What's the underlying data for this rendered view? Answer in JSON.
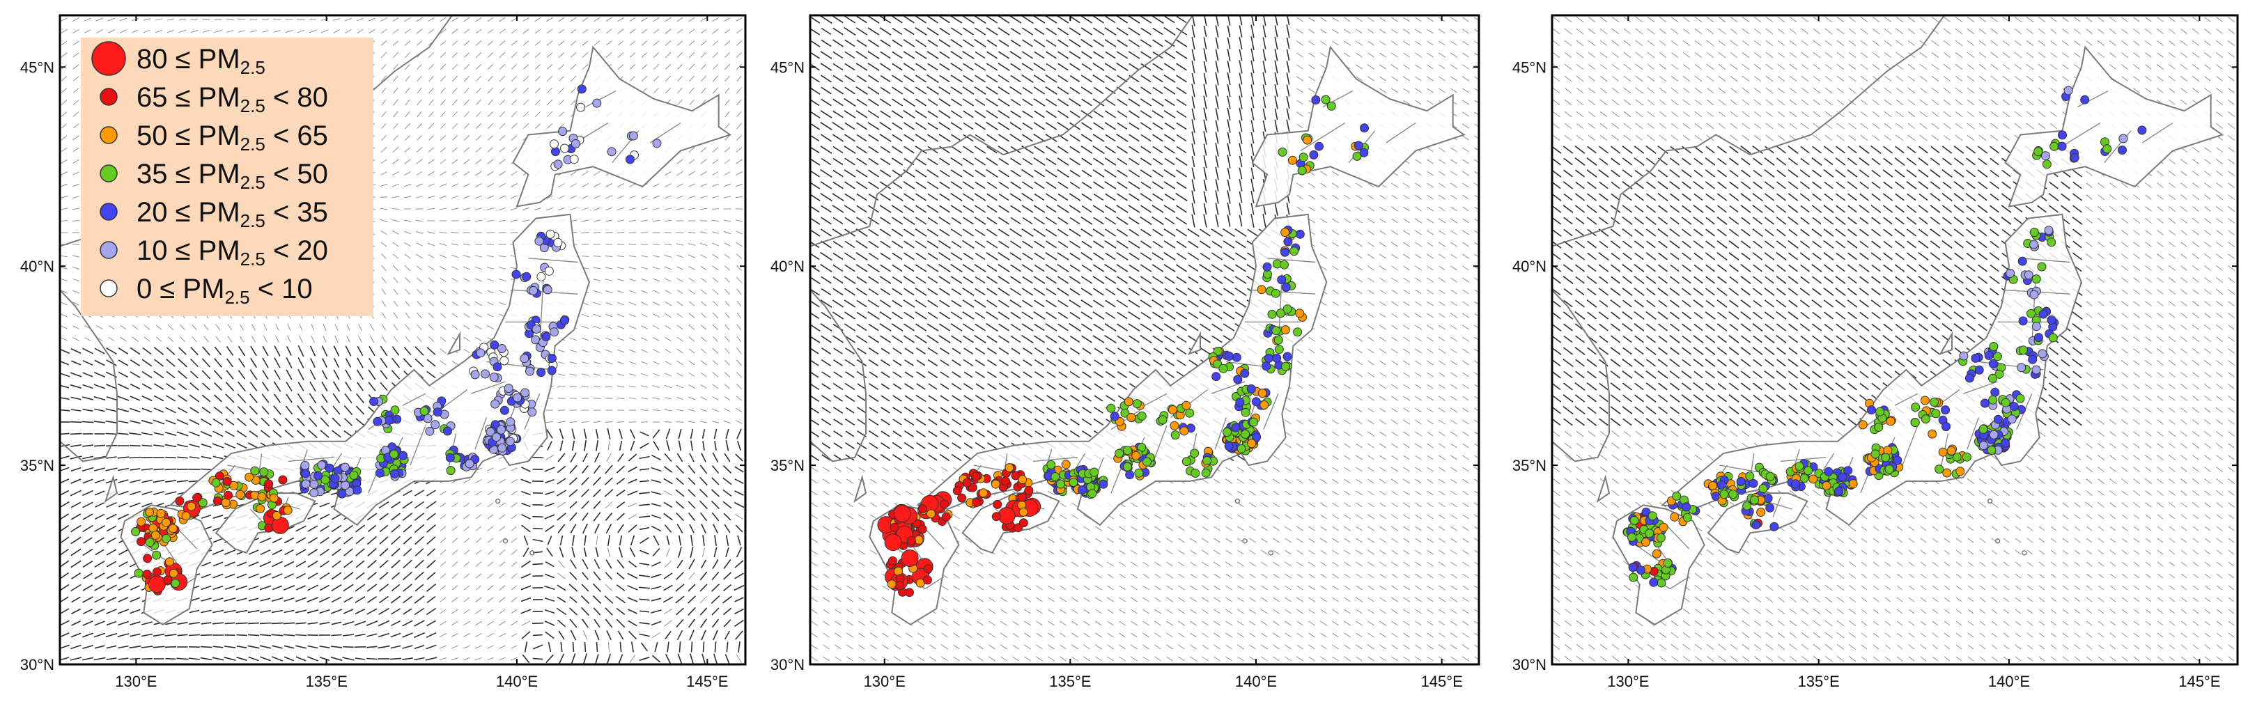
{
  "colors": {
    "legend_bg": "#fcd9bb",
    "coast": "#7a7a7a",
    "prefecture_border": "#8a8a8a",
    "wind_vector": "#222222",
    "frame": "#000000"
  },
  "legend": {
    "items": [
      {
        "label": "80 ≤ PM2.5",
        "parts": [
          "80 ≤ PM",
          "2.5",
          ""
        ],
        "color": "#ff1a1a",
        "size": "large"
      },
      {
        "label": "65 ≤ PM2.5 < 80",
        "parts": [
          "65 ≤ PM",
          "2.5",
          " < 80"
        ],
        "color": "#e81010",
        "size": "small"
      },
      {
        "label": "50 ≤ PM2.5 < 65",
        "parts": [
          "50 ≤ PM",
          "2.5",
          " < 65"
        ],
        "color": "#ff9900",
        "size": "small"
      },
      {
        "label": "35 ≤ PM2.5 < 50",
        "parts": [
          "35 ≤ PM",
          "2.5",
          " < 50"
        ],
        "color": "#66cc22",
        "size": "small"
      },
      {
        "label": "20 ≤ PM2.5 < 35",
        "parts": [
          "20 ≤ PM",
          "2.5",
          " < 35"
        ],
        "color": "#4444ee",
        "size": "small"
      },
      {
        "label": "10 ≤ PM2.5 < 20",
        "parts": [
          "10 ≤ PM",
          "2.5",
          " < 20"
        ],
        "color": "#a6a6ee",
        "size": "small"
      },
      {
        "label": "0 ≤ PM2.5 < 10",
        "parts": [
          "0 ≤ PM",
          "2.5",
          " < 10"
        ],
        "color": "#ffffff",
        "size": "small"
      }
    ]
  },
  "map_extent": {
    "lon_min": 128,
    "lon_max": 146,
    "lat_min": 30,
    "lat_max": 46.3
  },
  "lat_ticks": [
    {
      "value": 30,
      "label": "30°N"
    },
    {
      "value": 35,
      "label": "35°N"
    },
    {
      "value": 40,
      "label": "40°N"
    },
    {
      "value": 45,
      "label": "45°N"
    }
  ],
  "lon_ticks": [
    {
      "value": 130,
      "label": "130°E"
    },
    {
      "value": 135,
      "label": "135°E"
    },
    {
      "value": 140,
      "label": "140°E"
    },
    {
      "value": 145,
      "label": "145°E"
    }
  ],
  "panels": [
    {
      "name": "panel-1",
      "wind_pattern": "calm-east",
      "station_bias": {
        "west": 4,
        "center": 2,
        "east": 1
      }
    },
    {
      "name": "panel-2",
      "wind_pattern": "strong-northwest",
      "station_bias": {
        "west": 5,
        "center": 3,
        "east": 3
      }
    },
    {
      "name": "panel-3",
      "wind_pattern": "northwest-moderate",
      "station_bias": {
        "west": 3,
        "center": 3,
        "east": 2
      }
    }
  ]
}
